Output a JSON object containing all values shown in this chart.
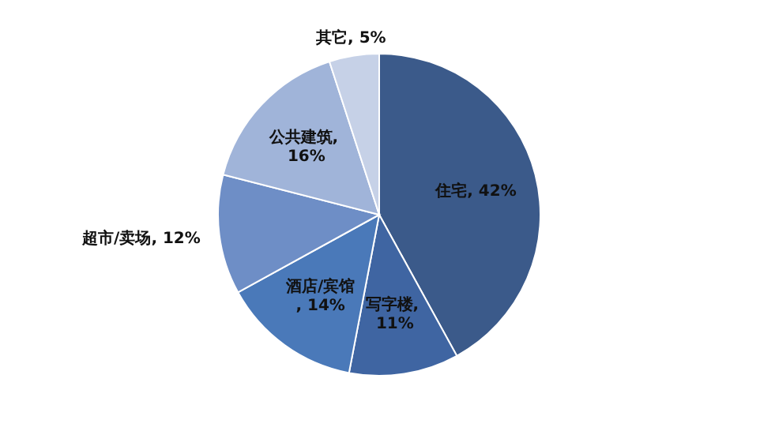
{
  "chart_data": {
    "type": "pie",
    "categories": [
      "住宅",
      "写字楼",
      "酒店/宾馆",
      "超市/卖场",
      "公共建筑",
      "其它"
    ],
    "values": [
      42,
      11,
      14,
      12,
      16,
      5
    ],
    "value_labels": [
      ", 42%",
      ", 11%",
      ", 14%",
      ", 12%",
      ", 16%",
      ", 5%"
    ],
    "legend": false,
    "colors": [
      "#3b5a8a",
      "#3f65a2",
      "#4a79b9",
      "#6e8ec6",
      "#a0b4d9",
      "#c6d1e7"
    ]
  }
}
